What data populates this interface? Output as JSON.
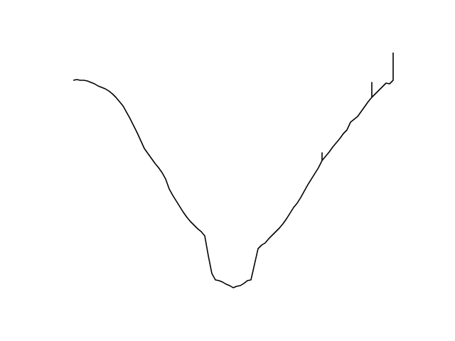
{
  "chart_data": {
    "type": "line",
    "color": "#000000",
    "axes_visible": false,
    "xlim": [
      -4.6,
      94.6
    ],
    "ylim": [
      0,
      369
    ],
    "x": [
      0,
      1,
      2,
      3,
      4,
      5,
      6,
      7,
      8,
      9,
      10,
      11,
      12,
      13,
      14,
      15,
      16,
      17,
      18,
      19,
      20,
      21,
      22,
      23,
      24,
      25,
      26,
      27,
      28,
      29,
      30,
      31,
      32,
      33,
      34,
      35,
      36,
      37,
      38,
      39,
      40,
      41,
      42,
      43,
      44,
      45,
      46,
      47,
      48,
      49,
      50,
      51,
      52,
      53,
      54,
      55,
      56,
      57,
      58,
      59,
      60,
      61,
      62,
      63,
      64,
      65,
      66,
      67,
      68,
      69,
      70,
      70,
      70,
      71,
      72,
      73,
      74,
      75,
      76,
      77,
      78,
      79,
      80,
      81,
      82,
      83,
      84,
      84,
      84,
      85,
      86,
      87,
      88,
      89,
      90,
      90
    ],
    "values": [
      314,
      315,
      314,
      314,
      313,
      311,
      309,
      306,
      304,
      302,
      299,
      295,
      290,
      284,
      278,
      269,
      260,
      250,
      240,
      229,
      218,
      211,
      204,
      197,
      191,
      184,
      175,
      161,
      152,
      144,
      136,
      128,
      121,
      115,
      110,
      105,
      101,
      95,
      67,
      42,
      33,
      32,
      30,
      27,
      25,
      22,
      24,
      25,
      28,
      32,
      33,
      55,
      77,
      82,
      85,
      91,
      96,
      101,
      106,
      112,
      119,
      127,
      135,
      141,
      149,
      158,
      167,
      175,
      183,
      191,
      201,
      212,
      201,
      207,
      213,
      220,
      226,
      232,
      239,
      244,
      255,
      259,
      263,
      270,
      277,
      284,
      290,
      311,
      290,
      295,
      300,
      305,
      310,
      309,
      314,
      353
    ]
  }
}
